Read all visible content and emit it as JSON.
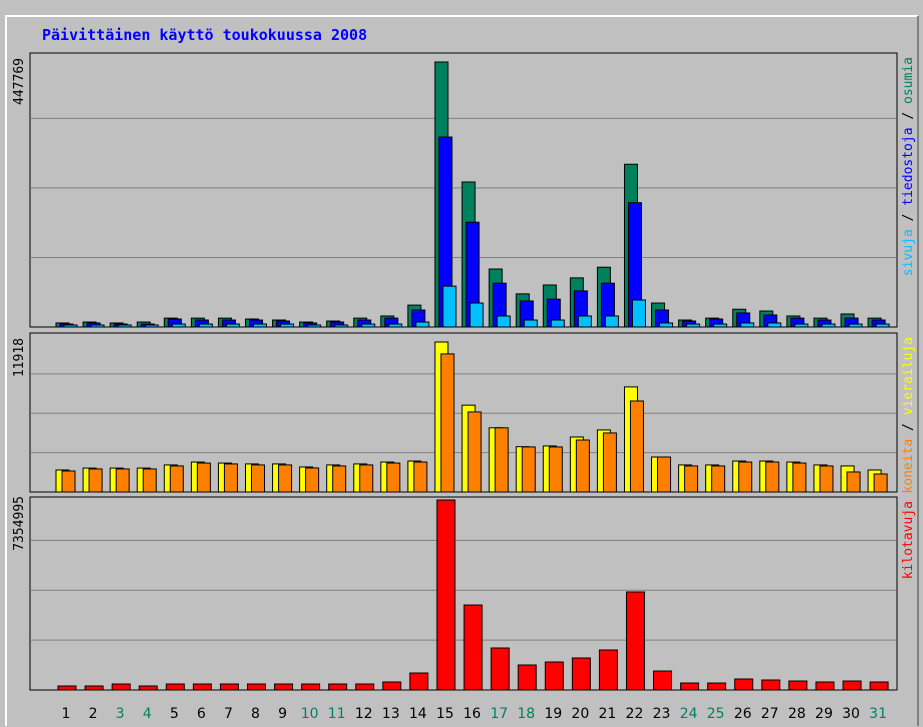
{
  "chart_data": [
    {
      "type": "bar",
      "title": "Päivittäinen käyttö toukokuussa 2008",
      "categories": [
        "1",
        "2",
        "3",
        "4",
        "5",
        "6",
        "7",
        "8",
        "9",
        "10",
        "11",
        "12",
        "13",
        "14",
        "15",
        "16",
        "17",
        "18",
        "19",
        "20",
        "21",
        "22",
        "23",
        "24",
        "25",
        "26",
        "27",
        "28",
        "29",
        "30",
        "31"
      ],
      "label_colors": [
        "#000000",
        "#000000",
        "#008060",
        "#008060",
        "#000000",
        "#000000",
        "#000000",
        "#000000",
        "#000000",
        "#008060",
        "#008060",
        "#000000",
        "#000000",
        "#000000",
        "#000000",
        "#000000",
        "#008060",
        "#008060",
        "#000000",
        "#000000",
        "#000000",
        "#000000",
        "#000000",
        "#008060",
        "#008060",
        "#000000",
        "#000000",
        "#000000",
        "#000000",
        "#000000",
        "#008060"
      ],
      "legend_separator": " / ",
      "ylim": [
        0,
        447769
      ],
      "yticks": [
        447769
      ],
      "series": [
        {
          "name": "osumia",
          "color": "#00805c",
          "values": [
            6800,
            8400,
            6800,
            8400,
            15000,
            15000,
            15000,
            13500,
            11800,
            8400,
            10100,
            15000,
            18600,
            37000,
            447769,
            245000,
            98000,
            56000,
            71000,
            83000,
            101000,
            275000,
            40500,
            11800,
            15000,
            30000,
            27000,
            18600,
            15000,
            22000,
            15000
          ]
        },
        {
          "name": "tiedostoja",
          "color": "#0000ff",
          "values": [
            5000,
            6800,
            5000,
            5000,
            13500,
            11800,
            11800,
            11800,
            10100,
            6800,
            8400,
            11800,
            15000,
            28700,
            321000,
            177000,
            74000,
            44000,
            47000,
            61000,
            74000,
            210000,
            28700,
            10100,
            13500,
            23700,
            20300,
            15000,
            11800,
            15000,
            11800
          ]
        },
        {
          "name": "sivuja",
          "color": "#00c0ff",
          "values": [
            3400,
            3400,
            3400,
            3400,
            5000,
            5000,
            5000,
            5000,
            5000,
            3400,
            3400,
            5000,
            5000,
            8400,
            69000,
            40500,
            18600,
            11800,
            11800,
            18600,
            18600,
            45600,
            6800,
            5000,
            5000,
            6800,
            6800,
            5000,
            5000,
            5000,
            5000
          ]
        }
      ]
    },
    {
      "type": "bar",
      "ylim": [
        0,
        11918
      ],
      "yticks": [
        11918
      ],
      "series": [
        {
          "name": "vierailuja",
          "color": "#ffff00",
          "values": [
            1750,
            1900,
            1900,
            1900,
            2150,
            2380,
            2300,
            2230,
            2230,
            1990,
            2150,
            2230,
            2380,
            2460,
            11918,
            6900,
            5100,
            3600,
            3660,
            4370,
            4930,
            8350,
            2780,
            2150,
            2150,
            2460,
            2460,
            2380,
            2150,
            2070,
            1750
          ]
        },
        {
          "name": "koneita",
          "color": "#ff8000",
          "values": [
            1670,
            1830,
            1830,
            1830,
            2070,
            2300,
            2230,
            2150,
            2150,
            1910,
            2070,
            2150,
            2300,
            2380,
            10970,
            6360,
            5100,
            3580,
            3580,
            4130,
            4690,
            7230,
            2780,
            2070,
            2070,
            2380,
            2380,
            2300,
            2070,
            1590,
            1430
          ]
        }
      ]
    },
    {
      "type": "bar",
      "ylim": [
        0,
        7354995
      ],
      "yticks": [
        7354995
      ],
      "series": [
        {
          "name": "kilotavuja",
          "color": "#ff0000",
          "values": [
            155000,
            155000,
            232000,
            155000,
            232000,
            232000,
            232000,
            232000,
            232000,
            232000,
            232000,
            232000,
            310000,
            658000,
            7354995,
            3290000,
            1626000,
            968000,
            1084000,
            1239000,
            1548000,
            3794000,
            735000,
            270000,
            270000,
            426000,
            387000,
            348000,
            310000,
            348000,
            310000
          ]
        }
      ]
    }
  ]
}
